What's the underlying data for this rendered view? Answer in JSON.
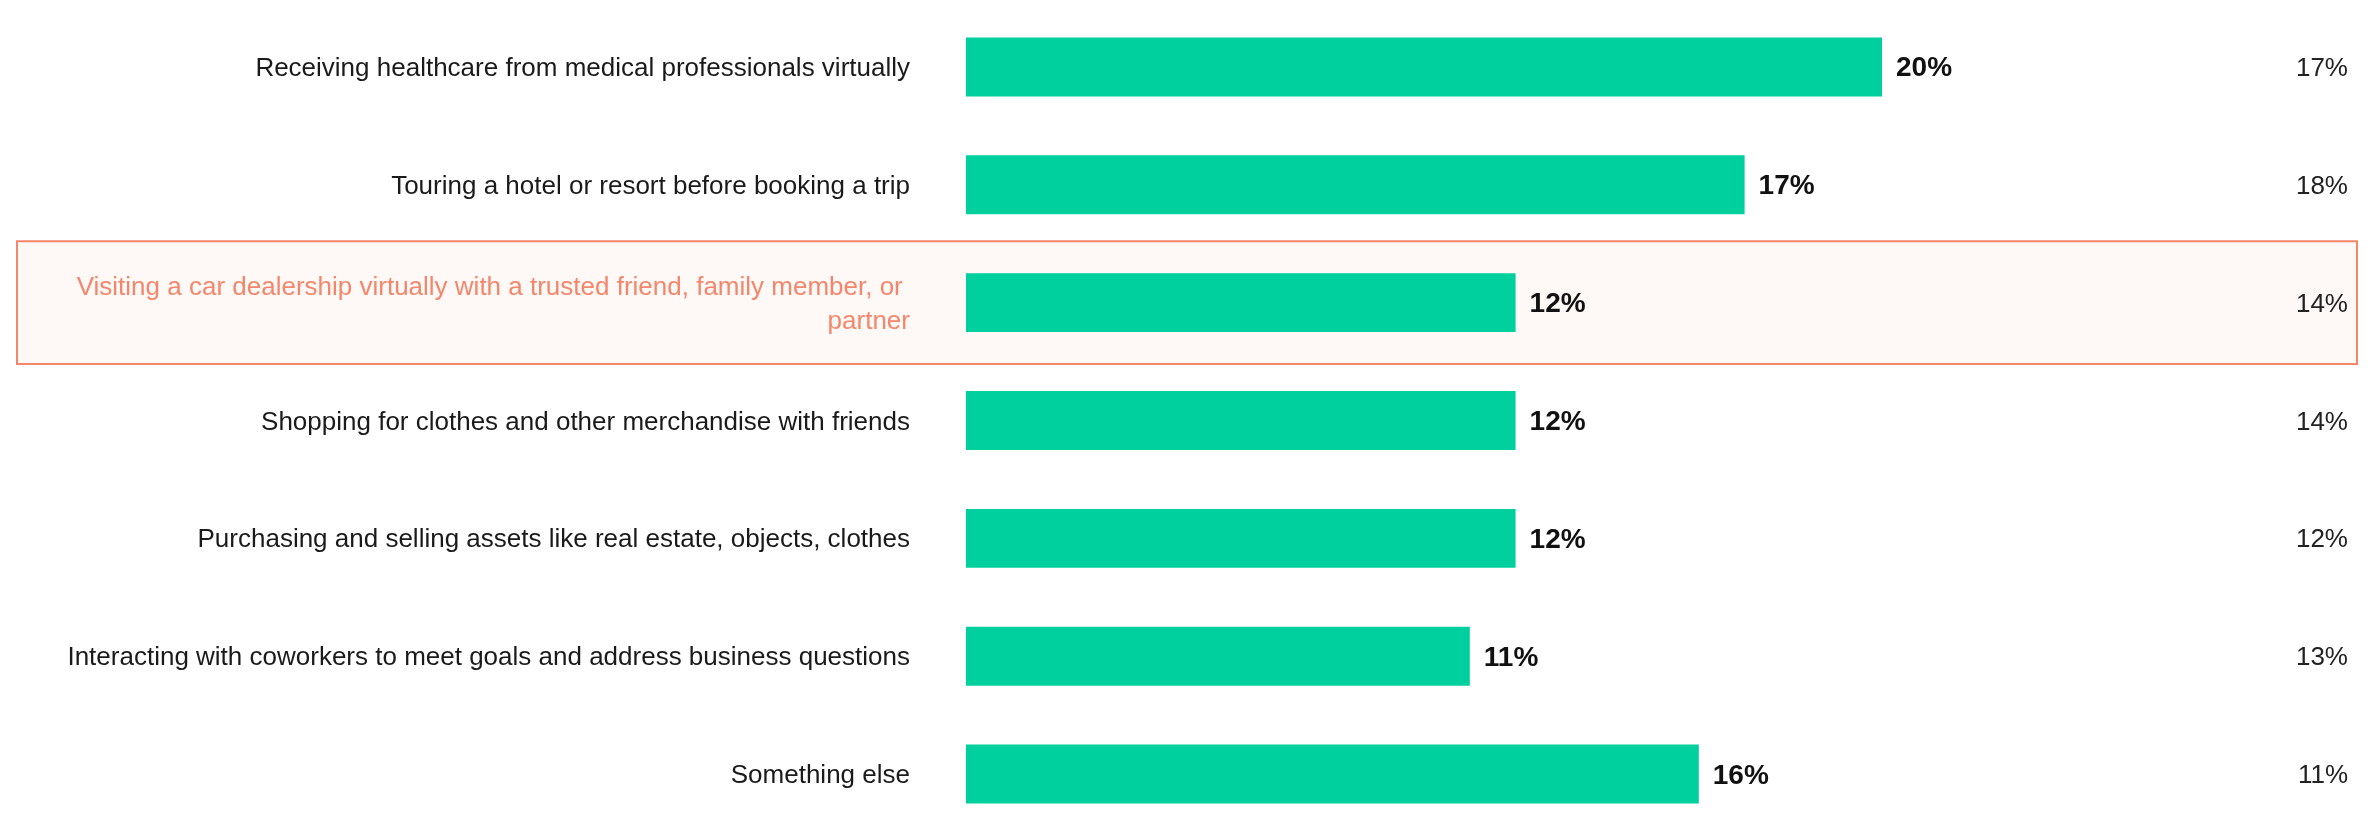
{
  "chart_data": {
    "type": "bar",
    "orientation": "horizontal",
    "categories": [
      "Receiving healthcare from medical professionals virtually",
      "Touring a hotel or resort before booking a trip",
      "Visiting a car dealership virtually with a trusted friend, family member, or partner",
      "Shopping for clothes and other merchandise with friends",
      "Purchasing and selling assets like real estate, objects, clothes",
      "Interacting with coworkers to meet goals and address business questions",
      "Something else"
    ],
    "values": [
      20,
      17,
      12,
      12,
      12,
      11,
      16
    ],
    "color": "#00d09e",
    "value_labels": [
      "20%",
      "17%",
      "12%",
      "12%",
      "12%",
      "11%",
      "16%"
    ],
    "tick_labels": "y",
    "bands": [
      {
        "axis": "y",
        "from": "Visiting a car dealership virtually with a trusted friend, family member, or partner",
        "to": "Visiting a car dealership virtually with a trusted friend, family member, or partner",
        "color": "#f4876b"
      }
    ],
    "annotations": [
      "17%",
      "18%",
      "14%",
      "14%",
      "12%",
      "13%",
      "11%"
    ]
  }
}
